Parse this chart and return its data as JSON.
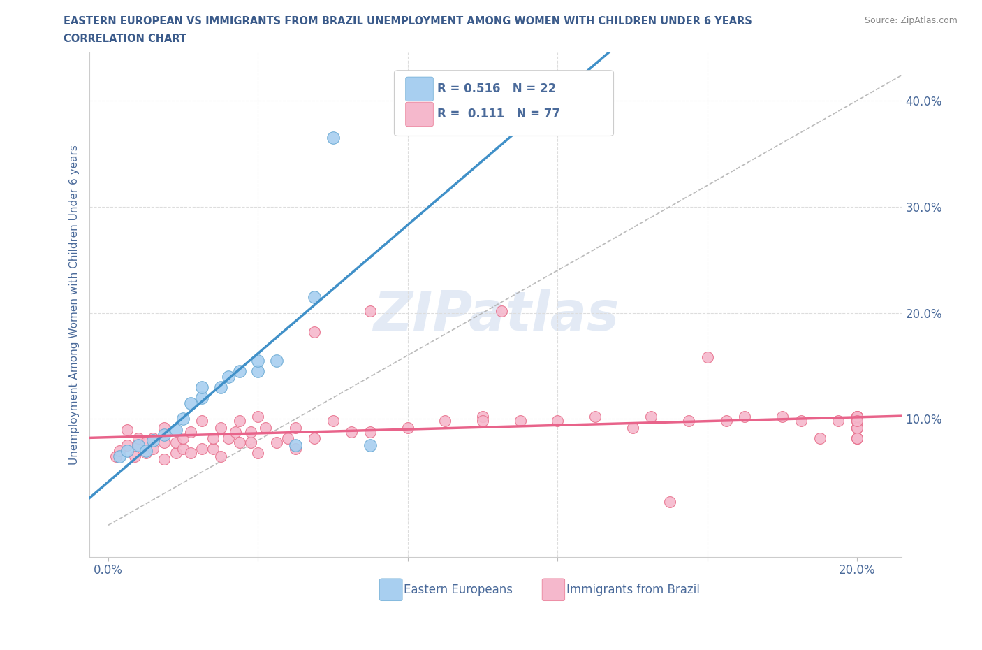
{
  "title_line1": "EASTERN EUROPEAN VS IMMIGRANTS FROM BRAZIL UNEMPLOYMENT AMONG WOMEN WITH CHILDREN UNDER 6 YEARS",
  "title_line2": "CORRELATION CHART",
  "source_text": "Source: ZipAtlas.com",
  "ylabel": "Unemployment Among Women with Children Under 6 years",
  "xlim": [
    -0.005,
    0.212
  ],
  "ylim": [
    -0.03,
    0.445
  ],
  "blue_color": "#a8cff0",
  "pink_color": "#f5b8cc",
  "blue_edge_color": "#6aaad4",
  "pink_edge_color": "#e8728e",
  "blue_line_color": "#4090c8",
  "pink_line_color": "#e8638a",
  "blue_label": "Eastern Europeans",
  "pink_label": "Immigrants from Brazil",
  "blue_R": "0.516",
  "blue_N": "22",
  "pink_R": "0.111",
  "pink_N": "77",
  "watermark": "ZIPatlas",
  "title_color": "#3a5a8a",
  "axis_color": "#4a6a9a",
  "blue_scatter_x": [
    0.003,
    0.005,
    0.008,
    0.01,
    0.012,
    0.015,
    0.018,
    0.02,
    0.022,
    0.025,
    0.025,
    0.03,
    0.032,
    0.035,
    0.04,
    0.04,
    0.045,
    0.05,
    0.055,
    0.06,
    0.07,
    0.08
  ],
  "blue_scatter_y": [
    0.065,
    0.07,
    0.075,
    0.07,
    0.08,
    0.085,
    0.09,
    0.1,
    0.115,
    0.12,
    0.13,
    0.13,
    0.14,
    0.145,
    0.145,
    0.155,
    0.155,
    0.075,
    0.215,
    0.365,
    0.075,
    0.415
  ],
  "pink_scatter_x": [
    0.002,
    0.003,
    0.005,
    0.005,
    0.007,
    0.008,
    0.008,
    0.01,
    0.01,
    0.012,
    0.012,
    0.015,
    0.015,
    0.015,
    0.018,
    0.018,
    0.02,
    0.02,
    0.022,
    0.022,
    0.025,
    0.025,
    0.028,
    0.028,
    0.03,
    0.03,
    0.032,
    0.034,
    0.035,
    0.035,
    0.038,
    0.038,
    0.04,
    0.04,
    0.042,
    0.045,
    0.048,
    0.05,
    0.05,
    0.055,
    0.055,
    0.06,
    0.065,
    0.07,
    0.07,
    0.08,
    0.09,
    0.1,
    0.1,
    0.105,
    0.11,
    0.12,
    0.13,
    0.14,
    0.145,
    0.15,
    0.155,
    0.16,
    0.165,
    0.17,
    0.18,
    0.185,
    0.19,
    0.195,
    0.2,
    0.2,
    0.2,
    0.2,
    0.2,
    0.2,
    0.2,
    0.2,
    0.2,
    0.2,
    0.2,
    0.2,
    0.2
  ],
  "pink_scatter_y": [
    0.065,
    0.07,
    0.075,
    0.09,
    0.065,
    0.075,
    0.082,
    0.068,
    0.078,
    0.072,
    0.082,
    0.062,
    0.078,
    0.092,
    0.068,
    0.078,
    0.072,
    0.082,
    0.068,
    0.088,
    0.072,
    0.098,
    0.072,
    0.082,
    0.065,
    0.092,
    0.082,
    0.088,
    0.078,
    0.098,
    0.078,
    0.088,
    0.102,
    0.068,
    0.092,
    0.078,
    0.082,
    0.072,
    0.092,
    0.082,
    0.182,
    0.098,
    0.088,
    0.202,
    0.088,
    0.092,
    0.098,
    0.102,
    0.098,
    0.202,
    0.098,
    0.098,
    0.102,
    0.092,
    0.102,
    0.022,
    0.098,
    0.158,
    0.098,
    0.102,
    0.102,
    0.098,
    0.082,
    0.098,
    0.092,
    0.098,
    0.102,
    0.098,
    0.082,
    0.102,
    0.092,
    0.082,
    0.102,
    0.092,
    0.082,
    0.102,
    0.098
  ],
  "diag_color": "#aaaaaa",
  "grid_color": "#dddddd",
  "spine_color": "#cccccc"
}
